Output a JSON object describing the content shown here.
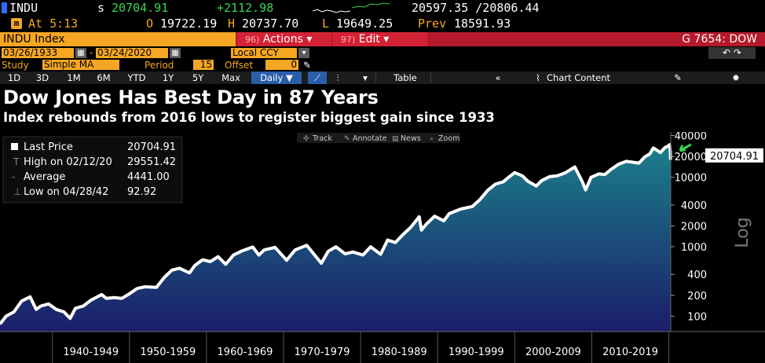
{
  "quote": {
    "ticker": "INDU",
    "s_label": "s",
    "last": "20704.91",
    "change": "+2112.98",
    "bid_ask": "20597.35 /20806.44",
    "flag": "m",
    "at": "At 5:13",
    "open_label": "O",
    "open": "19722.19",
    "high_label": "H",
    "high": "20737.70",
    "low_label": "L",
    "low": "19649.25",
    "prev_label": "Prev",
    "prev": "18591.93"
  },
  "menu": {
    "security": "INDU Index",
    "actions_num": "96)",
    "actions": "Actions ▾",
    "edit_num": "97)",
    "edit": "Edit ▾",
    "page": "G 7654: DOW"
  },
  "range": {
    "start": "03/26/1933",
    "end": "03/24/2020",
    "currency": "Local CCY",
    "undo": "↶  ↷"
  },
  "study": {
    "label": "Study",
    "value": "Simple MA",
    "period_label": "Period",
    "period": "15",
    "offset_label": "Offset",
    "offset": "0"
  },
  "toolbar": {
    "periods": [
      "1D",
      "3D",
      "1M",
      "6M",
      "YTD",
      "1Y",
      "5Y",
      "Max"
    ],
    "frequency": "Daily ▼",
    "table": "Table",
    "chart_content": "Chart Content"
  },
  "title": "Dow Jones Has Best Day in 87 Years",
  "subtitle": "Index rebounds from 2016 lows to register biggest gain since 1933",
  "chart_tools": [
    "Track",
    "Annotate",
    "News",
    "Zoom"
  ],
  "legend": [
    {
      "label": "Last Price",
      "value": "20704.91"
    },
    {
      "label": "High on 02/12/20",
      "value": "29551.42"
    },
    {
      "label": "Average",
      "value": "4441.00"
    },
    {
      "label": "Low on 04/28/42",
      "value": "92.92"
    }
  ],
  "last_price_tag": "20704.91",
  "colors": {
    "line": "#ffffff",
    "fill_top": "#1b7f8a",
    "fill_bottom": "#1b1d6a",
    "accent": "#f5a623",
    "arrow": "#39d353"
  },
  "chart_data": {
    "type": "area",
    "title": "Dow Jones Has Best Day in 87 Years",
    "subtitle": "Index rebounds from 2016 lows to register biggest gain since 1933",
    "ylabel": "Log",
    "yscale": "log",
    "xlim": [
      1933.2,
      2020.25
    ],
    "ylim": [
      60,
      45000
    ],
    "yticks": [
      100,
      200,
      400,
      1000,
      2000,
      4000,
      10000,
      20000,
      40000
    ],
    "ytick_labels": [
      "100",
      "200",
      "400",
      "1000",
      "2000",
      "4000",
      "10000",
      "20000",
      "40000"
    ],
    "x_categories": [
      "1940-1949",
      "1950-1959",
      "1960-1969",
      "1970-1979",
      "1980-1989",
      "1990-1999",
      "2000-2009",
      "2010-2019"
    ],
    "category_bounds": [
      1940,
      1950,
      1960,
      1970,
      1980,
      1990,
      2000,
      2010,
      2020
    ],
    "legend_position": "top-left",
    "series": [
      {
        "name": "Last Price",
        "points": [
          [
            1933.2,
            77
          ],
          [
            1934.0,
            100
          ],
          [
            1935.0,
            115
          ],
          [
            1936.0,
            165
          ],
          [
            1937.1,
            190
          ],
          [
            1937.9,
            125
          ],
          [
            1938.5,
            140
          ],
          [
            1939.5,
            150
          ],
          [
            1940.5,
            125
          ],
          [
            1941.5,
            115
          ],
          [
            1942.3,
            93
          ],
          [
            1943.0,
            130
          ],
          [
            1944.0,
            140
          ],
          [
            1945.0,
            170
          ],
          [
            1946.4,
            205
          ],
          [
            1947.0,
            180
          ],
          [
            1948.0,
            185
          ],
          [
            1949.0,
            180
          ],
          [
            1950.0,
            210
          ],
          [
            1951.0,
            250
          ],
          [
            1952.0,
            265
          ],
          [
            1953.5,
            260
          ],
          [
            1954.5,
            360
          ],
          [
            1955.5,
            460
          ],
          [
            1956.5,
            490
          ],
          [
            1957.8,
            420
          ],
          [
            1958.5,
            540
          ],
          [
            1959.5,
            650
          ],
          [
            1960.5,
            610
          ],
          [
            1961.5,
            720
          ],
          [
            1962.5,
            560
          ],
          [
            1963.5,
            760
          ],
          [
            1964.5,
            860
          ],
          [
            1966.0,
            990
          ],
          [
            1966.8,
            760
          ],
          [
            1967.5,
            900
          ],
          [
            1968.9,
            980
          ],
          [
            1970.4,
            640
          ],
          [
            1971.5,
            900
          ],
          [
            1973.0,
            1050
          ],
          [
            1974.9,
            580
          ],
          [
            1975.8,
            860
          ],
          [
            1976.8,
            1000
          ],
          [
            1978.0,
            790
          ],
          [
            1979.0,
            840
          ],
          [
            1980.3,
            760
          ],
          [
            1981.3,
            1000
          ],
          [
            1982.6,
            780
          ],
          [
            1983.5,
            1250
          ],
          [
            1984.5,
            1150
          ],
          [
            1985.5,
            1500
          ],
          [
            1986.5,
            1900
          ],
          [
            1987.6,
            2700
          ],
          [
            1987.9,
            1740
          ],
          [
            1988.5,
            2100
          ],
          [
            1989.6,
            2750
          ],
          [
            1990.8,
            2360
          ],
          [
            1991.5,
            3000
          ],
          [
            1993.0,
            3500
          ],
          [
            1994.5,
            3800
          ],
          [
            1995.5,
            4800
          ],
          [
            1996.5,
            6500
          ],
          [
            1997.5,
            8000
          ],
          [
            1998.5,
            8600
          ],
          [
            1999.2,
            10000
          ],
          [
            2000.0,
            11700
          ],
          [
            2001.0,
            10500
          ],
          [
            2001.7,
            8800
          ],
          [
            2002.8,
            7500
          ],
          [
            2003.5,
            9000
          ],
          [
            2004.5,
            10200
          ],
          [
            2005.5,
            10500
          ],
          [
            2006.5,
            11500
          ],
          [
            2007.8,
            14100
          ],
          [
            2008.8,
            8500
          ],
          [
            2009.2,
            6600
          ],
          [
            2009.9,
            10000
          ],
          [
            2010.9,
            11200
          ],
          [
            2011.7,
            11000
          ],
          [
            2012.5,
            13000
          ],
          [
            2013.5,
            15500
          ],
          [
            2014.5,
            17000
          ],
          [
            2015.7,
            16300
          ],
          [
            2016.1,
            16000
          ],
          [
            2016.9,
            19800
          ],
          [
            2017.5,
            21500
          ],
          [
            2018.0,
            26500
          ],
          [
            2018.9,
            22800
          ],
          [
            2019.5,
            26800
          ],
          [
            2019.95,
            28500
          ],
          [
            2020.11,
            29551
          ],
          [
            2020.2,
            23000
          ],
          [
            2020.22,
            18600
          ],
          [
            2020.23,
            20705
          ]
        ]
      }
    ]
  }
}
